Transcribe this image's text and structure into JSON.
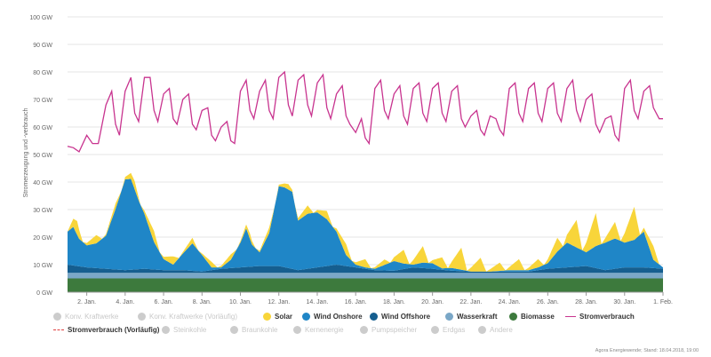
{
  "chart_data": {
    "type": "area",
    "ylabel": "Stromerzeugung und -verbrauch",
    "y_unit": "GW",
    "ylim": [
      0,
      100
    ],
    "y_ticks": [
      "0 GW",
      "10 GW",
      "20 GW",
      "30 GW",
      "40 GW",
      "50 GW",
      "60 GW",
      "70 GW",
      "80 GW",
      "90 GW",
      "100 GW"
    ],
    "x_ticks": [
      "2. Jan.",
      "4. Jan.",
      "6. Jan.",
      "8. Jan.",
      "10. Jan.",
      "12. Jan.",
      "14. Jan.",
      "16. Jan.",
      "18. Jan.",
      "20. Jan.",
      "22. Jan.",
      "24. Jan.",
      "26. Jan.",
      "28. Jan.",
      "30. Jan.",
      "1. Feb."
    ],
    "x_day_range": [
      1,
      32
    ],
    "stack": [
      {
        "name": "Biomasse",
        "color": "#3d7a3d",
        "points": [
          [
            1,
            5
          ],
          [
            32,
            5
          ]
        ]
      },
      {
        "name": "Wasserkraft",
        "color": "#7aa7c7",
        "points": [
          [
            1,
            2
          ],
          [
            32,
            2
          ]
        ]
      },
      {
        "name": "Wind Offshore",
        "color": "#155e8f",
        "points": [
          [
            1,
            3
          ],
          [
            2,
            2
          ],
          [
            3,
            1.5
          ],
          [
            4,
            1
          ],
          [
            5,
            1.5
          ],
          [
            6,
            1
          ],
          [
            7,
            1
          ],
          [
            8,
            0.5
          ],
          [
            9,
            1.5
          ],
          [
            10,
            2
          ],
          [
            11,
            2.5
          ],
          [
            12,
            2.5
          ],
          [
            13,
            1
          ],
          [
            14,
            2
          ],
          [
            15,
            3
          ],
          [
            16,
            2
          ],
          [
            17,
            1
          ],
          [
            18,
            0.8
          ],
          [
            19,
            2
          ],
          [
            20,
            1.5
          ],
          [
            21,
            0.8
          ],
          [
            22,
            0.5
          ],
          [
            23,
            0.5
          ],
          [
            24,
            0.5
          ],
          [
            25,
            0.5
          ],
          [
            26,
            1.5
          ],
          [
            27,
            2
          ],
          [
            28,
            2.5
          ],
          [
            29,
            1
          ],
          [
            30,
            2
          ],
          [
            31,
            2
          ],
          [
            32,
            1.5
          ]
        ]
      },
      {
        "name": "Wind Onshore",
        "color": "#1f86c7",
        "points": [
          [
            1,
            12
          ],
          [
            1.3,
            14
          ],
          [
            1.6,
            10
          ],
          [
            2,
            8
          ],
          [
            2.5,
            9
          ],
          [
            3,
            12
          ],
          [
            3.5,
            22
          ],
          [
            4,
            33
          ],
          [
            4.3,
            33
          ],
          [
            4.7,
            25
          ],
          [
            5,
            20
          ],
          [
            5.5,
            10
          ],
          [
            6,
            4
          ],
          [
            6.5,
            2
          ],
          [
            7,
            6
          ],
          [
            7.5,
            10
          ],
          [
            8,
            6
          ],
          [
            8.5,
            1
          ],
          [
            9,
            0.5
          ],
          [
            9.5,
            3
          ],
          [
            10,
            9
          ],
          [
            10.3,
            14
          ],
          [
            10.6,
            8
          ],
          [
            11,
            5
          ],
          [
            11.5,
            12
          ],
          [
            12,
            29
          ],
          [
            12.3,
            29
          ],
          [
            12.7,
            28
          ],
          [
            13,
            18
          ],
          [
            13.5,
            20
          ],
          [
            14,
            20
          ],
          [
            14.5,
            17
          ],
          [
            15,
            12
          ],
          [
            15.5,
            4
          ],
          [
            16,
            1
          ],
          [
            16.5,
            0.5
          ],
          [
            17,
            0.5
          ],
          [
            17.5,
            2
          ],
          [
            18,
            3.5
          ],
          [
            18.5,
            2
          ],
          [
            19,
            1
          ],
          [
            19.5,
            2
          ],
          [
            20,
            2
          ],
          [
            20.5,
            0.5
          ],
          [
            21,
            1
          ],
          [
            21.5,
            0.5
          ],
          [
            22,
            0
          ],
          [
            23,
            0
          ],
          [
            24,
            0.5
          ],
          [
            25,
            0.5
          ],
          [
            25.5,
            1
          ],
          [
            26,
            2
          ],
          [
            26.5,
            6
          ],
          [
            27,
            9
          ],
          [
            27.5,
            7
          ],
          [
            28,
            5
          ],
          [
            28.5,
            8
          ],
          [
            29,
            10
          ],
          [
            29.5,
            11
          ],
          [
            30,
            9
          ],
          [
            30.5,
            10
          ],
          [
            31,
            13
          ],
          [
            31.5,
            3
          ],
          [
            32,
            0.5
          ]
        ]
      },
      {
        "name": "Solar",
        "color": "#f8d53a",
        "points": [
          [
            1,
            0
          ],
          [
            1.5,
            5
          ],
          [
            1.8,
            0
          ],
          [
            2.5,
            3
          ],
          [
            2.8,
            0
          ],
          [
            3.5,
            2
          ],
          [
            3.8,
            0
          ],
          [
            4.5,
            3
          ],
          [
            4.8,
            0
          ],
          [
            5.5,
            4
          ],
          [
            5.8,
            0
          ],
          [
            6.5,
            3
          ],
          [
            6.8,
            0
          ],
          [
            7.5,
            2
          ],
          [
            7.8,
            0
          ],
          [
            8.5,
            2
          ],
          [
            8.8,
            0
          ],
          [
            9.5,
            2
          ],
          [
            9.8,
            0
          ],
          [
            10.5,
            2
          ],
          [
            10.8,
            0
          ],
          [
            11.5,
            2
          ],
          [
            11.8,
            0
          ],
          [
            12.5,
            2
          ],
          [
            12.8,
            0
          ],
          [
            13.5,
            3
          ],
          [
            13.8,
            0
          ],
          [
            14.5,
            3
          ],
          [
            14.8,
            0
          ],
          [
            15.5,
            4
          ],
          [
            15.8,
            0
          ],
          [
            16.5,
            3
          ],
          [
            16.8,
            0
          ],
          [
            17.5,
            2
          ],
          [
            17.8,
            0
          ],
          [
            18.5,
            5
          ],
          [
            18.8,
            0
          ],
          [
            19.5,
            6
          ],
          [
            19.8,
            0
          ],
          [
            20.5,
            4
          ],
          [
            20.8,
            0
          ],
          [
            21.5,
            8
          ],
          [
            21.8,
            0
          ],
          [
            22.5,
            5
          ],
          [
            22.8,
            0
          ],
          [
            23.5,
            3
          ],
          [
            23.8,
            0
          ],
          [
            24.5,
            4
          ],
          [
            24.8,
            0
          ],
          [
            25.5,
            3
          ],
          [
            25.8,
            0
          ],
          [
            26.5,
            5
          ],
          [
            26.8,
            0
          ],
          [
            27.5,
            10
          ],
          [
            27.8,
            0
          ],
          [
            28.5,
            12
          ],
          [
            28.8,
            0
          ],
          [
            29.5,
            6
          ],
          [
            29.8,
            0
          ],
          [
            30.5,
            12
          ],
          [
            30.8,
            0
          ],
          [
            31.5,
            5
          ],
          [
            31.8,
            0
          ],
          [
            32,
            0
          ]
        ]
      }
    ],
    "line_series": {
      "name": "Stromverbrauch",
      "color": "#c8348f",
      "points": [
        [
          1,
          53
        ],
        [
          1.3,
          52.5
        ],
        [
          1.6,
          51
        ],
        [
          2,
          57
        ],
        [
          2.3,
          54
        ],
        [
          2.6,
          54
        ],
        [
          3,
          68
        ],
        [
          3.3,
          73
        ],
        [
          3.5,
          61
        ],
        [
          3.7,
          57
        ],
        [
          4,
          73
        ],
        [
          4.3,
          78
        ],
        [
          4.5,
          65
        ],
        [
          4.7,
          62
        ],
        [
          5,
          78
        ],
        [
          5.3,
          78
        ],
        [
          5.5,
          66
        ],
        [
          5.7,
          62
        ],
        [
          6,
          72
        ],
        [
          6.3,
          74
        ],
        [
          6.5,
          63
        ],
        [
          6.7,
          61
        ],
        [
          7,
          70
        ],
        [
          7.3,
          72
        ],
        [
          7.5,
          61
        ],
        [
          7.7,
          59
        ],
        [
          8,
          66
        ],
        [
          8.3,
          67
        ],
        [
          8.5,
          57
        ],
        [
          8.7,
          55
        ],
        [
          9,
          60
        ],
        [
          9.3,
          62
        ],
        [
          9.5,
          55
        ],
        [
          9.7,
          54
        ],
        [
          10,
          73
        ],
        [
          10.3,
          77
        ],
        [
          10.5,
          66
        ],
        [
          10.7,
          63
        ],
        [
          11,
          73
        ],
        [
          11.3,
          77
        ],
        [
          11.5,
          66
        ],
        [
          11.7,
          63
        ],
        [
          12,
          78
        ],
        [
          12.3,
          80
        ],
        [
          12.5,
          68
        ],
        [
          12.7,
          64
        ],
        [
          13,
          77
        ],
        [
          13.3,
          79
        ],
        [
          13.5,
          68
        ],
        [
          13.7,
          64
        ],
        [
          14,
          76
        ],
        [
          14.3,
          79
        ],
        [
          14.5,
          67
        ],
        [
          14.7,
          63
        ],
        [
          15,
          72
        ],
        [
          15.3,
          75
        ],
        [
          15.5,
          64
        ],
        [
          15.7,
          61
        ],
        [
          16,
          58
        ],
        [
          16.3,
          63
        ],
        [
          16.5,
          56
        ],
        [
          16.7,
          54
        ],
        [
          17,
          74
        ],
        [
          17.3,
          77
        ],
        [
          17.5,
          66
        ],
        [
          17.7,
          63
        ],
        [
          18,
          72
        ],
        [
          18.3,
          75
        ],
        [
          18.5,
          64
        ],
        [
          18.7,
          61
        ],
        [
          19,
          74
        ],
        [
          19.3,
          76
        ],
        [
          19.5,
          65
        ],
        [
          19.7,
          62
        ],
        [
          20,
          74
        ],
        [
          20.3,
          76
        ],
        [
          20.5,
          65
        ],
        [
          20.7,
          62
        ],
        [
          21,
          73
        ],
        [
          21.3,
          75
        ],
        [
          21.5,
          63
        ],
        [
          21.7,
          60
        ],
        [
          22,
          64
        ],
        [
          22.3,
          66
        ],
        [
          22.5,
          59
        ],
        [
          22.7,
          57
        ],
        [
          23,
          64
        ],
        [
          23.3,
          63
        ],
        [
          23.5,
          59
        ],
        [
          23.7,
          57
        ],
        [
          24,
          74
        ],
        [
          24.3,
          76
        ],
        [
          24.5,
          65
        ],
        [
          24.7,
          62
        ],
        [
          25,
          74
        ],
        [
          25.3,
          76
        ],
        [
          25.5,
          65
        ],
        [
          25.7,
          62
        ],
        [
          26,
          74
        ],
        [
          26.3,
          76
        ],
        [
          26.5,
          65
        ],
        [
          26.7,
          62
        ],
        [
          27,
          74
        ],
        [
          27.3,
          77
        ],
        [
          27.5,
          66
        ],
        [
          27.7,
          62
        ],
        [
          28,
          70
        ],
        [
          28.3,
          72
        ],
        [
          28.5,
          61
        ],
        [
          28.7,
          58
        ],
        [
          29,
          63
        ],
        [
          29.3,
          64
        ],
        [
          29.5,
          57
        ],
        [
          29.7,
          55
        ],
        [
          30,
          74
        ],
        [
          30.3,
          77
        ],
        [
          30.5,
          66
        ],
        [
          30.7,
          63
        ],
        [
          31,
          73
        ],
        [
          31.3,
          75
        ],
        [
          31.5,
          67
        ],
        [
          31.8,
          63
        ],
        [
          32,
          63
        ]
      ]
    }
  },
  "legend": {
    "row1": [
      {
        "label": "Konv. Kraftwerke",
        "kind": "dot",
        "color": "#cccccc",
        "active": false
      },
      {
        "label": "Konv. Kraftwerke (Vorläufig)",
        "kind": "dot",
        "color": "#cccccc",
        "active": false
      },
      {
        "label": "Solar",
        "kind": "dot",
        "color": "#f8d53a",
        "active": true
      },
      {
        "label": "Wind Onshore",
        "kind": "dot",
        "color": "#1f86c7",
        "active": true
      },
      {
        "label": "Wind Offshore",
        "kind": "dot",
        "color": "#155e8f",
        "active": true
      },
      {
        "label": "Wasserkraft",
        "kind": "dot",
        "color": "#7aa7c7",
        "active": true
      },
      {
        "label": "Biomasse",
        "kind": "dot",
        "color": "#3d7a3d",
        "active": true
      },
      {
        "label": "Stromverbrauch",
        "kind": "line",
        "color": "#c8348f",
        "active": true
      }
    ],
    "row2": [
      {
        "label": "Stromverbrauch (Vorläufig)",
        "kind": "dash",
        "color": "#e04040",
        "active": true
      },
      {
        "label": "Steinkohle",
        "kind": "dot",
        "color": "#cccccc",
        "active": false
      },
      {
        "label": "Braunkohle",
        "kind": "dot",
        "color": "#cccccc",
        "active": false
      },
      {
        "label": "Kernenergie",
        "kind": "dot",
        "color": "#cccccc",
        "active": false
      },
      {
        "label": "Pumpspeicher",
        "kind": "dot",
        "color": "#cccccc",
        "active": false
      },
      {
        "label": "Erdgas",
        "kind": "dot",
        "color": "#cccccc",
        "active": false
      },
      {
        "label": "Andere",
        "kind": "dot",
        "color": "#cccccc",
        "active": false
      }
    ]
  },
  "credit": "Agora Energiewende; Stand: 18.04.2018, 19:00"
}
